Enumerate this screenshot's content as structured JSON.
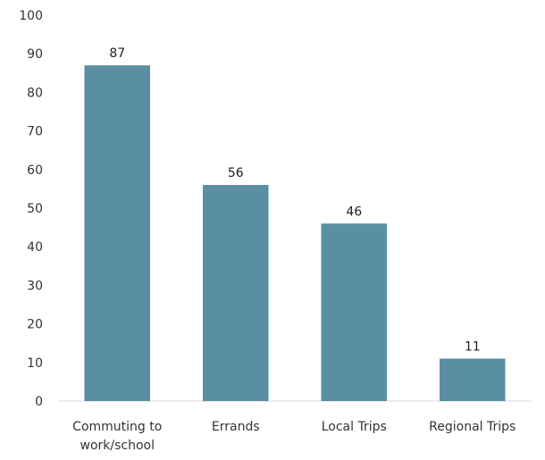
{
  "chart_data": {
    "type": "bar",
    "title": "",
    "xlabel": "",
    "ylabel": "",
    "categories": [
      [
        "Commuting to",
        "work/school"
      ],
      [
        "Errands"
      ],
      [
        "Local Trips"
      ],
      [
        "Regional Trips"
      ]
    ],
    "values": [
      87,
      56,
      46,
      11
    ],
    "ylim": [
      0,
      100
    ],
    "yticks": [
      0,
      10,
      20,
      30,
      40,
      50,
      60,
      70,
      80,
      90,
      100
    ],
    "bar_color": "#5a8fa3",
    "grid": false,
    "legend": "none"
  }
}
